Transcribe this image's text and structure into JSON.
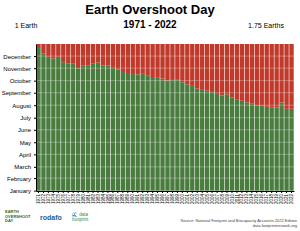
{
  "chart_data": {
    "type": "bar",
    "stacked": true,
    "grid": true,
    "title": "Earth Overshoot Day",
    "subtitle": "1971 - 2022",
    "annotations": [
      "1 Earth",
      "1.75 Earths",
      "Source: National Footprint and Biocapacity Accounts 2022 Edition\ndata.footprintnetwork.org",
      "EARTH\nOVERSHOOT\nDAY",
      "rodafo",
      "🌊 data\nfootprint"
    ],
    "categories": [
      "1971",
      "1972",
      "1973",
      "1974",
      "1975",
      "1976",
      "1977",
      "1978",
      "1979",
      "1980",
      "1981",
      "1982",
      "1983",
      "1984",
      "1985",
      "1986",
      "1987",
      "1988",
      "1989",
      "1990",
      "1991",
      "1992",
      "1993",
      "1994",
      "1995",
      "1996",
      "1997",
      "1998",
      "1999",
      "2000",
      "2001",
      "2002",
      "2003",
      "2004",
      "2005",
      "2006",
      "2007",
      "2008",
      "2009",
      "2010",
      "2011",
      "2012",
      "2013",
      "2014",
      "2015",
      "2016",
      "2017",
      "2018",
      "2019",
      "2020",
      "2021",
      "2022"
    ],
    "series": [
      {
        "color": "#4a7c3f",
        "values": [
          355,
          341,
          333,
          329,
          333,
          320,
          316,
          316,
          305,
          311,
          311,
          316,
          319,
          312,
          312,
          308,
          302,
          298,
          293,
          293,
          289,
          291,
          286,
          283,
          281,
          279,
          274,
          278,
          276,
          270,
          265,
          261,
          254,
          253,
          249,
          246,
          241,
          237,
          240,
          232,
          228,
          224,
          220,
          218,
          213,
          213,
          209,
          208,
          207,
          220,
          204,
          204
        ]
      },
      {
        "color": "#c0392b",
        "values": [
          10,
          24,
          32,
          36,
          32,
          45,
          49,
          49,
          60,
          54,
          54,
          49,
          46,
          53,
          53,
          57,
          63,
          67,
          72,
          72,
          76,
          74,
          79,
          82,
          84,
          86,
          91,
          87,
          89,
          95,
          100,
          104,
          111,
          112,
          116,
          119,
          124,
          128,
          125,
          133,
          137,
          141,
          145,
          147,
          152,
          152,
          156,
          157,
          158,
          145,
          161,
          161
        ]
      }
    ],
    "ylim": [
      0,
      365
    ],
    "yticks": [
      {
        "value": 1,
        "label": "January"
      },
      {
        "value": 32,
        "label": "February"
      },
      {
        "value": 60,
        "label": "March"
      },
      {
        "value": 91,
        "label": "April"
      },
      {
        "value": 121,
        "label": "May"
      },
      {
        "value": 152,
        "label": "June"
      },
      {
        "value": 182,
        "label": "July"
      },
      {
        "value": 213,
        "label": "August"
      },
      {
        "value": 244,
        "label": "September"
      },
      {
        "value": 274,
        "label": "October"
      },
      {
        "value": 305,
        "label": "November"
      },
      {
        "value": 335,
        "label": "December"
      }
    ]
  }
}
